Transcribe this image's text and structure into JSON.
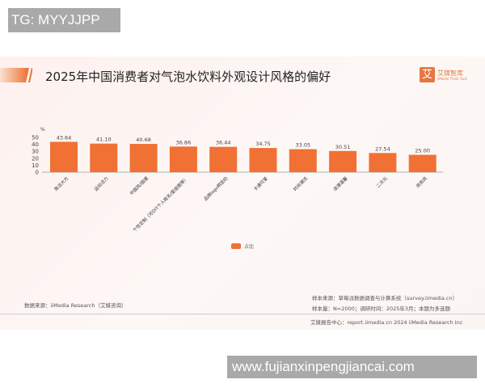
{
  "watermarks": {
    "top": "TG: MYYJJPP",
    "bottom": "www.fujianxinpengjiancai.com"
  },
  "header": {
    "title": "2025年中国消费者对气泡水饮料外观设计风格的偏好",
    "logo_mark": "艾",
    "logo_name": "艾媒智库",
    "logo_sub": "iiMedia Think Tank"
  },
  "colors": {
    "bar": "#f07133",
    "accent": "#e8773f"
  },
  "chart_data": {
    "type": "bar",
    "title": "2025年中国消费者对气泡水饮料外观设计风格的偏好",
    "ylabel": "%",
    "ylim": [
      0,
      50
    ],
    "yticks": [
      0,
      10,
      20,
      30,
      40,
      50
    ],
    "grid": false,
    "legend_position": "bottom",
    "categories": [
      "简洁大方",
      "运动活力",
      "中国风/国潮",
      "个性定制（可DIY个人姓名/星座图等）",
      "品牌logo明显的",
      "卡通可爱",
      "时尚潮流",
      "浪漫温馨",
      "二次元",
      "商务风"
    ],
    "series": [
      {
        "name": "占比",
        "values": [
          43.64,
          41.1,
          40.68,
          36.86,
          36.44,
          34.75,
          33.05,
          30.51,
          27.54,
          25.0
        ]
      }
    ],
    "data_labels": [
      "43.64",
      "41.10",
      "40.68",
      "36.86",
      "36.44",
      "34.75",
      "33.05",
      "30.51",
      "27.54",
      "25.00"
    ]
  },
  "footer": {
    "data_source": "数据来源：iiMedia Research（艾媒咨询）",
    "sample_source": "样本来源：草莓派数据调查与计算系统（survey.iimedia.cn）",
    "sample_size": "样本量：N=2000；调研时间：2025年3月；本题为多选题",
    "report_center": "艾媒报告中心：report.iimedia.cn  2024 iiMedia Research Inc"
  }
}
